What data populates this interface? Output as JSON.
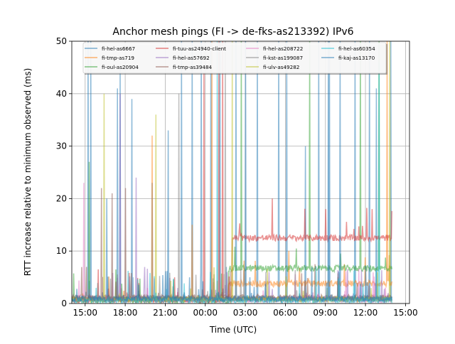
{
  "chart_data": {
    "type": "line",
    "title": "Anchor mesh pings (FI -> de-fks-as213392) IPv6",
    "xlabel": "Time (UTC)",
    "ylabel": "RTT increase relative to minimum observed (ms)",
    "x_unit": "hours since day-1 00:00 UTC",
    "xlim": [
      14.0,
      39.3
    ],
    "ylim": [
      0,
      50
    ],
    "grid": true,
    "legend_placement": "top-center",
    "x_ticks": [
      {
        "value": 15,
        "label": "15:00"
      },
      {
        "value": 18,
        "label": "18:00"
      },
      {
        "value": 21,
        "label": "21:00"
      },
      {
        "value": 24,
        "label": "00:00"
      },
      {
        "value": 27,
        "label": "03:00"
      },
      {
        "value": 30,
        "label": "06:00"
      },
      {
        "value": 33,
        "label": "09:00"
      },
      {
        "value": 36,
        "label": "12:00"
      },
      {
        "value": 39,
        "label": "15:00"
      }
    ],
    "y_ticks": [
      {
        "value": 0,
        "label": "0"
      },
      {
        "value": 10,
        "label": "10"
      },
      {
        "value": 20,
        "label": "20"
      },
      {
        "value": 30,
        "label": "30"
      },
      {
        "value": 40,
        "label": "40"
      },
      {
        "value": 50,
        "label": "50"
      }
    ],
    "x_range_data": [
      13.9,
      38.0
    ],
    "series": [
      {
        "name": "fi-hel-as6667",
        "color": "#1f77b4",
        "baseline": [
          [
            13.9,
            0.8
          ]
        ],
        "spikes": [
          [
            15.2,
            50
          ],
          [
            15.4,
            50
          ],
          [
            16.6,
            20
          ],
          [
            17.4,
            41
          ],
          [
            17.6,
            45
          ],
          [
            18.5,
            39
          ],
          [
            20.0,
            23
          ],
          [
            21.2,
            33
          ],
          [
            22.2,
            50
          ],
          [
            23.0,
            50
          ],
          [
            23.7,
            50
          ],
          [
            24.4,
            50
          ],
          [
            25.1,
            50
          ],
          [
            26.3,
            50
          ],
          [
            27.9,
            50
          ],
          [
            29.5,
            50
          ],
          [
            30.1,
            50
          ],
          [
            31.5,
            30
          ],
          [
            32.5,
            50
          ],
          [
            33.3,
            50
          ],
          [
            35.2,
            50
          ],
          [
            36.3,
            50
          ],
          [
            36.8,
            41
          ],
          [
            37.9,
            50
          ]
        ]
      },
      {
        "name": "fi-tmp-as719",
        "color": "#ff7f0e",
        "baseline": [
          [
            13.9,
            0.8
          ],
          [
            25.7,
            3.8
          ]
        ],
        "spikes": [
          [
            20.0,
            32
          ],
          [
            23.0,
            15
          ],
          [
            24.5,
            50
          ],
          [
            37.6,
            50
          ],
          [
            38.0,
            50
          ]
        ]
      },
      {
        "name": "fi-oul-as20904",
        "color": "#2ca02c",
        "baseline": [
          [
            13.9,
            0.6
          ],
          [
            25.7,
            6.7
          ]
        ],
        "spikes": [
          [
            15.3,
            27
          ],
          [
            26.7,
            50
          ],
          [
            31.8,
            50
          ],
          [
            35.6,
            50
          ],
          [
            37.0,
            50
          ]
        ]
      },
      {
        "name": "fi-tuu-as24940-client",
        "color": "#d62728",
        "baseline": [
          [
            13.9,
            0.7
          ],
          [
            26.0,
            12.5
          ]
        ],
        "spikes": [
          [
            23.9,
            44
          ],
          [
            25.0,
            50
          ],
          [
            25.3,
            50
          ],
          [
            29.0,
            20
          ],
          [
            33.0,
            18
          ],
          [
            36.5,
            18
          ]
        ]
      },
      {
        "name": "fi-hel-as57692",
        "color": "#9467bd",
        "baseline": [
          [
            13.9,
            0.9
          ]
        ],
        "spikes": [
          [
            17.6,
            40
          ],
          [
            18.8,
            24
          ]
        ]
      },
      {
        "name": "fi-tmp-as39484",
        "color": "#8c564b",
        "baseline": [
          [
            13.9,
            1.2
          ]
        ],
        "spikes": [
          [
            16.2,
            22
          ],
          [
            17.0,
            21
          ],
          [
            18.0,
            22
          ]
        ]
      },
      {
        "name": "fi-hel-as208722",
        "color": "#e377c2",
        "baseline": [
          [
            13.9,
            0.7
          ]
        ],
        "spikes": [
          [
            14.9,
            23
          ]
        ]
      },
      {
        "name": "fi-kst-as199087",
        "color": "#7f7f7f",
        "baseline": [
          [
            13.9,
            0.9
          ]
        ],
        "spikes": [
          [
            22.0,
            40
          ],
          [
            25.5,
            50
          ]
        ]
      },
      {
        "name": "fi-ulv-as49282",
        "color": "#bcbd22",
        "baseline": [
          [
            13.9,
            0.8
          ]
        ],
        "spikes": [
          [
            16.4,
            40
          ],
          [
            20.3,
            36
          ],
          [
            26.0,
            50
          ],
          [
            37.8,
            50
          ]
        ]
      },
      {
        "name": "fi-hel-as60354",
        "color": "#17becf",
        "baseline": [
          [
            13.9,
            0.6
          ]
        ],
        "spikes": [
          [
            24.9,
            50
          ],
          [
            37.0,
            46
          ]
        ]
      },
      {
        "name": "fi-kaj-as13170",
        "color": "#1f77b4",
        "baseline": [
          [
            13.9,
            0.9
          ]
        ],
        "spikes": [
          [
            27.0,
            50
          ],
          [
            33.2,
            50
          ],
          [
            34.1,
            50
          ]
        ]
      }
    ]
  }
}
